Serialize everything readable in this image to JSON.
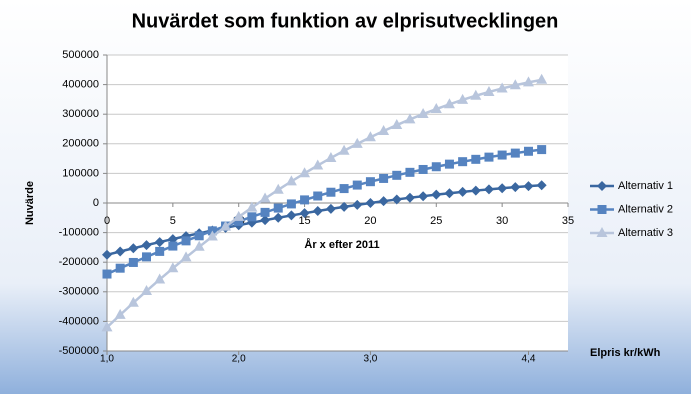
{
  "chart_data": {
    "type": "line",
    "title": "Nuvärdet som funktion av elprisutvecklingen",
    "ylabel": "Nuvärde",
    "xlabel": "År x efter 2011",
    "x2label": "Elpris kr/kWh",
    "x": [
      0,
      1,
      2,
      3,
      4,
      5,
      6,
      7,
      8,
      9,
      10,
      11,
      12,
      13,
      14,
      15,
      16,
      17,
      18,
      19,
      20,
      21,
      22,
      23,
      24,
      25,
      26,
      27,
      28,
      29,
      30,
      31,
      32,
      33
    ],
    "series": [
      {
        "name": "Alternativ 1",
        "color": "#3a67a0",
        "marker": "diamond",
        "values": [
          -175000,
          -163875,
          -153000,
          -142375,
          -132000,
          -121875,
          -112000,
          -102375,
          -93000,
          -83875,
          -75000,
          -66375,
          -58000,
          -49875,
          -42000,
          -34375,
          -27000,
          -19875,
          -13000,
          -6375,
          0,
          6125,
          12000,
          17625,
          23000,
          28125,
          33000,
          37625,
          42000,
          46125,
          50000,
          53625,
          57000,
          60125
        ]
      },
      {
        "name": "Alternativ 2",
        "color": "#5583c0",
        "marker": "square",
        "values": [
          -240000,
          -220220,
          -200880,
          -181980,
          -163520,
          -145500,
          -127920,
          -110780,
          -94080,
          -77820,
          -62000,
          -46620,
          -31680,
          -17180,
          -3120,
          10500,
          23680,
          36420,
          48720,
          60580,
          72000,
          82980,
          93520,
          103620,
          113280,
          122500,
          131280,
          139620,
          147520,
          154980,
          162000,
          168580,
          174720,
          180420
        ]
      },
      {
        "name": "Alternativ 3",
        "color": "#b8c5dc",
        "marker": "triangle",
        "values": [
          -420000,
          -378020,
          -337080,
          -297180,
          -258320,
          -220500,
          -183720,
          -147980,
          -113280,
          -79620,
          -47000,
          -15420,
          15120,
          44620,
          73080,
          100500,
          126880,
          152220,
          176520,
          199780,
          222000,
          243180,
          263320,
          282420,
          300480,
          317500,
          333480,
          348420,
          362320,
          375180,
          387000,
          397780,
          407520,
          416220
        ]
      }
    ],
    "xlim": [
      0,
      35
    ],
    "xticks": [
      0,
      5,
      10,
      15,
      20,
      25,
      30,
      35
    ],
    "ylim": [
      -500000,
      500000
    ],
    "yticks": [
      -500000,
      -400000,
      -300000,
      -200000,
      -100000,
      0,
      100000,
      200000,
      300000,
      400000,
      500000
    ],
    "x2ticks": [
      {
        "value": 0,
        "label": "1,0"
      },
      {
        "value": 10,
        "label": "2,0"
      },
      {
        "value": 20,
        "label": "3,0"
      },
      {
        "value": 32,
        "label": "4,4"
      }
    ],
    "grid": true,
    "legend": "right"
  }
}
